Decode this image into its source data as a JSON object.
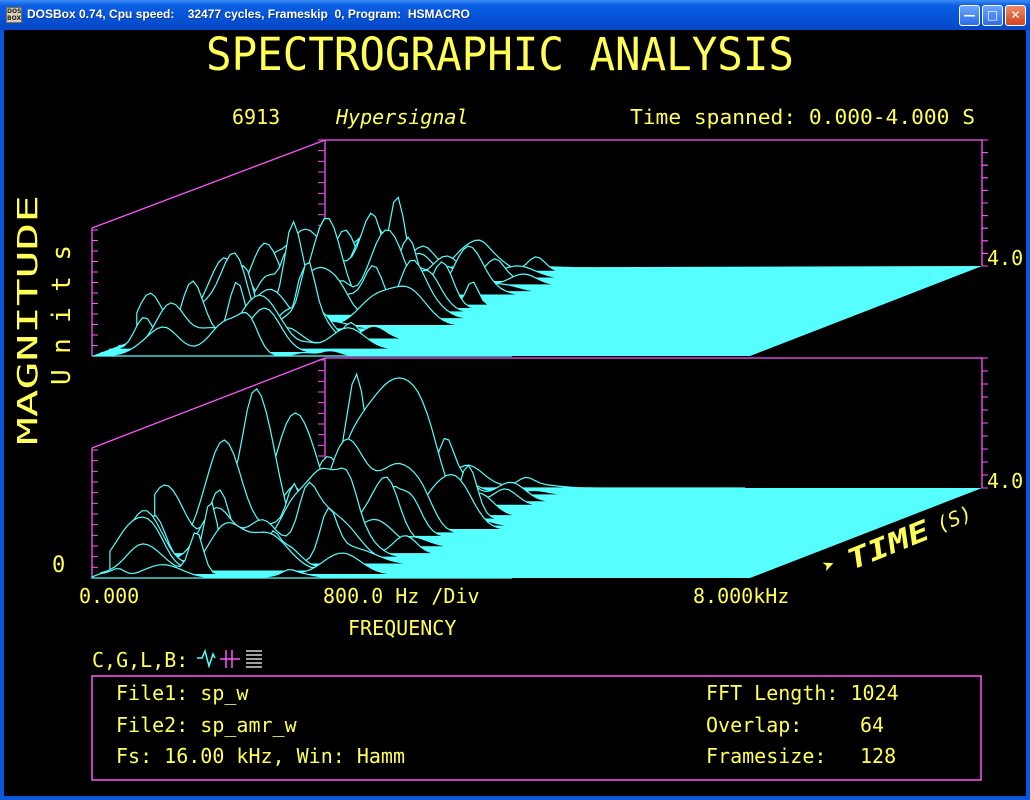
{
  "window": {
    "title": "DOSBox 0.74, Cpu speed:    32477 cycles, Frameskip  0, Program:  HSMACRO",
    "icon_label": "DOS BOX",
    "buttons": {
      "minimize": "minimize-icon",
      "maximize": "maximize-icon",
      "close": "close-icon"
    }
  },
  "app": {
    "heading": "SPECTROGRAPHIC ANALYSIS",
    "id_number": "6913",
    "brand": "Hypersignal",
    "time_spanned": "Time spanned: 0.000-4.000 S"
  },
  "chart_data": {
    "type": "waterfall",
    "ylabel": "MAGNITUDE",
    "yunit": "Units",
    "y_zero_label": "0",
    "xlabel": "FREQUENCY",
    "x_ticks": [
      "0.000",
      "800.0 Hz /Div",
      "8.000kHz"
    ],
    "time_axis_label": "TIME",
    "time_unit": "(S)",
    "time_end_labels": [
      "4.0",
      "4.0"
    ],
    "frequency_range_khz": [
      0,
      8
    ],
    "time_range_s": [
      0,
      4
    ],
    "panels": [
      "top",
      "bottom"
    ],
    "colors": {
      "axes": "#ff55ff",
      "text": "#ffff55",
      "surface": "#55ffff",
      "background": "#000000"
    }
  },
  "info": {
    "legend_prefix": "C,G,L,B:",
    "file1": "File1: sp_w",
    "file2": "File2: sp_amr_w",
    "fs": "Fs: 16.00 kHz, Win: Hamm",
    "fft_length": "FFT Length: 1024",
    "overlap_label": "Overlap:",
    "overlap_value": "64",
    "framesize_label": "Framesize:",
    "framesize_value": "128",
    "legend_icons": [
      "waveform-icon",
      "grid-icon",
      "lines-icon"
    ]
  }
}
